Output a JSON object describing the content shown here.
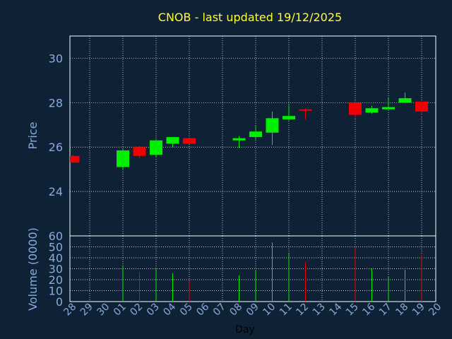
{
  "chart_data": {
    "type": "candlestick",
    "title": "CNOB - last updated 19/12/2025",
    "xlabel": "Day",
    "colors": {
      "background": "#0f2235",
      "panel": "#0f2235",
      "frame": "#ffffff",
      "grid": "#ffffff",
      "axis_text": "#88aadd",
      "title": "#ffff33",
      "xlabel": "#000000",
      "up": "#00ee00",
      "down": "#ee0000"
    },
    "x_ticks": [
      "28",
      "29",
      "30",
      "01",
      "02",
      "03",
      "04",
      "05",
      "06",
      "07",
      "08",
      "09",
      "10",
      "11",
      "12",
      "13",
      "14",
      "15",
      "16",
      "17",
      "18",
      "19",
      "20"
    ],
    "price_panel": {
      "ylabel": "Price",
      "ylim": [
        22.0,
        31.0
      ],
      "yticks": [
        24,
        26,
        28,
        30
      ]
    },
    "volume_panel": {
      "ylabel": "Volume (0000)",
      "ylim": [
        0,
        60
      ],
      "yticks": [
        0,
        10,
        20,
        30,
        40,
        50,
        60
      ]
    },
    "candles": [
      {
        "day": "28",
        "open": 25.6,
        "high": 25.65,
        "low": 25.3,
        "close": 25.3,
        "volume": 0
      },
      {
        "day": "01",
        "open": 25.1,
        "high": 25.9,
        "low": 24.95,
        "close": 25.85,
        "volume": 32
      },
      {
        "day": "02",
        "open": 26.0,
        "high": 26.05,
        "low": 25.5,
        "close": 25.6,
        "volume": 27
      },
      {
        "day": "03",
        "open": 25.65,
        "high": 26.35,
        "low": 25.55,
        "close": 26.3,
        "volume": 30
      },
      {
        "day": "04",
        "open": 26.15,
        "high": 26.45,
        "low": 26.0,
        "close": 26.45,
        "volume": 26
      },
      {
        "day": "05",
        "open": 26.4,
        "high": 26.4,
        "low": 26.15,
        "close": 26.15,
        "volume": 19
      },
      {
        "day": "08",
        "open": 26.3,
        "high": 26.5,
        "low": 25.95,
        "close": 26.4,
        "volume": 24
      },
      {
        "day": "09",
        "open": 26.45,
        "high": 26.95,
        "low": 26.35,
        "close": 26.7,
        "volume": 29
      },
      {
        "day": "10",
        "open": 26.65,
        "high": 27.6,
        "low": 26.1,
        "close": 27.3,
        "volume": 54
      },
      {
        "day": "11",
        "open": 27.25,
        "high": 27.9,
        "low": 27.2,
        "close": 27.4,
        "volume": 44
      },
      {
        "day": "12",
        "open": 27.7,
        "high": 27.75,
        "low": 27.25,
        "close": 27.65,
        "volume": 36
      },
      {
        "day": "15",
        "open": 28.0,
        "high": 28.1,
        "low": 27.3,
        "close": 27.45,
        "volume": 50
      },
      {
        "day": "16",
        "open": 27.55,
        "high": 27.85,
        "low": 27.5,
        "close": 27.75,
        "volume": 30
      },
      {
        "day": "17",
        "open": 27.7,
        "high": 28.2,
        "low": 27.7,
        "close": 27.8,
        "volume": 23
      },
      {
        "day": "18",
        "open": 28.0,
        "high": 28.45,
        "low": 28.0,
        "close": 28.2,
        "volume": 29
      },
      {
        "day": "19",
        "open": 28.05,
        "high": 28.05,
        "low": 27.45,
        "close": 27.6,
        "volume": 43
      }
    ]
  }
}
